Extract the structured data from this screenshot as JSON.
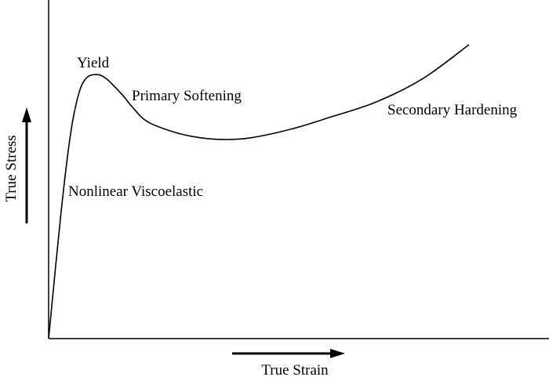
{
  "chart_data": {
    "type": "line",
    "title": "",
    "xlabel": "True Strain",
    "ylabel": "True Stress",
    "xlim": [
      0,
      100
    ],
    "ylim": [
      0,
      100
    ],
    "grid": false,
    "axis_ticks": false,
    "line_color": "#000000",
    "series": [
      {
        "x": [
          0,
          2.5,
          4.4,
          6.0,
          7.5,
          9.4,
          11.4,
          14.6,
          16.9,
          19.7,
          24.8,
          29.5,
          35.0,
          40.4,
          48.3,
          56.1,
          65.5,
          74.9,
          84.0
        ],
        "y": [
          0,
          37.5,
          60.6,
          72.2,
          76.9,
          78.0,
          76.9,
          72.2,
          68.1,
          64.1,
          61.1,
          59.5,
          58.8,
          59.3,
          61.8,
          65.3,
          69.9,
          76.9,
          86.8
        ]
      }
    ],
    "annotations": [
      {
        "id": "yield",
        "text": "Yield"
      },
      {
        "id": "primary",
        "text": "Primary Softening"
      },
      {
        "id": "viscoelastic",
        "text": "Nonlinear Viscoelastic"
      },
      {
        "id": "secondary",
        "text": "Secondary Hardening"
      }
    ]
  }
}
